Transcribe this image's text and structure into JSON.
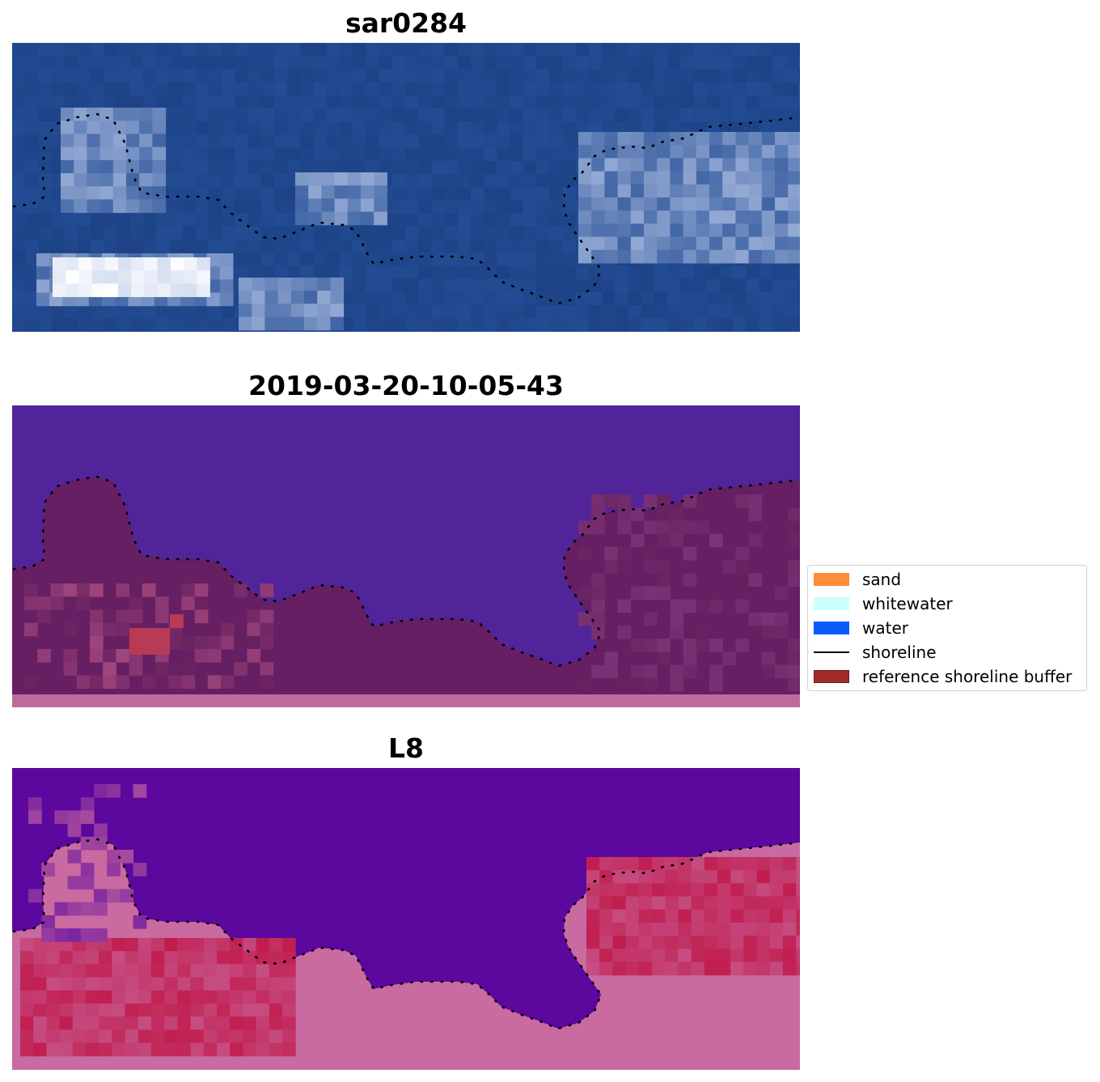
{
  "panels": [
    {
      "title": "sar0284",
      "style": "rgb"
    },
    {
      "title": "2019-03-20-10-05-43",
      "style": "classified"
    },
    {
      "title": "L8",
      "style": "index"
    }
  ],
  "legend": {
    "items": [
      {
        "label": "sand",
        "type": "patch",
        "color": "#ff8c3a"
      },
      {
        "label": "whitewater",
        "type": "patch",
        "color": "#ccffff"
      },
      {
        "label": "water",
        "type": "patch",
        "color": "#0a5cff"
      },
      {
        "label": "shoreline",
        "type": "line",
        "color": "#000000"
      },
      {
        "label": "reference shoreline buffer",
        "type": "patch",
        "color": "#a52a2a"
      }
    ]
  },
  "colors": {
    "rgb_water": "#234c94",
    "classified_water": "#52249a",
    "classified_land": "#66205f",
    "classified_strip": "#c06a9a",
    "index_water": "#5c079e",
    "index_land": "#c0194a",
    "index_pink": "#c96aa0",
    "shoreline": "#000000"
  }
}
